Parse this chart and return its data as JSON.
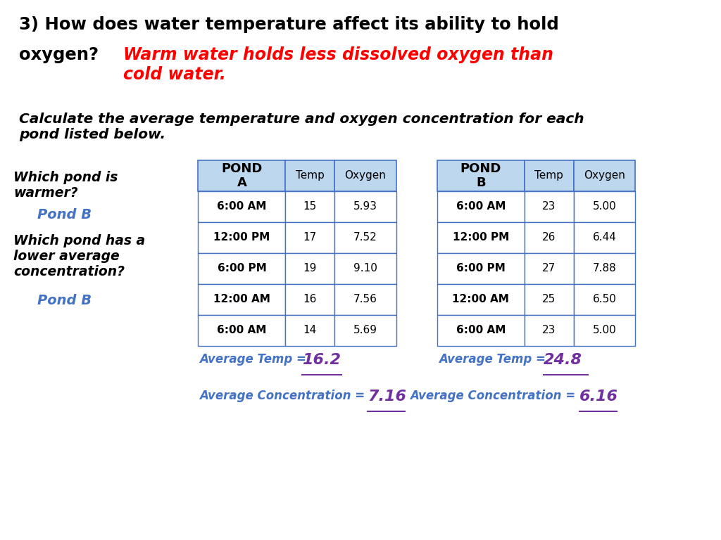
{
  "title_line1": "3) How does water temperature affect its ability to hold",
  "title_line2": "oxygen?",
  "answer_text": "Warm water holds less dissolved oxygen than\ncold water.",
  "calc_text": "Calculate the average temperature and oxygen concentration for each\npond listed below.",
  "q1_text": "Which pond is\nwarmer?",
  "q1_answer": "Pond B",
  "q2_text": "Which pond has a\nlower average\nconcentration?",
  "q2_answer": "Pond B",
  "pond_a_header": "POND\nA",
  "pond_b_header": "POND\nB",
  "col_headers": [
    "Temp",
    "Oxygen"
  ],
  "times": [
    "6:00 AM",
    "12:00 PM",
    "6:00 PM",
    "12:00 AM",
    "6:00 AM"
  ],
  "pond_a_temp": [
    15,
    17,
    19,
    16,
    14
  ],
  "pond_a_oxygen": [
    5.93,
    7.52,
    9.1,
    7.56,
    5.69
  ],
  "pond_b_temp": [
    23,
    26,
    27,
    25,
    23
  ],
  "pond_b_oxygen": [
    5.0,
    6.44,
    7.88,
    6.5,
    5.0
  ],
  "avg_temp_a": "16.2",
  "avg_temp_b": "24.8",
  "avg_conc_a": "7.16",
  "avg_conc_b": "6.16",
  "title_color": "#000000",
  "answer_color": "#FF0000",
  "calc_color": "#000000",
  "question_color": "#000000",
  "pond_answer_color": "#4472C4",
  "avg_label_color": "#4472C4",
  "avg_value_color": "#7030A0",
  "table_header_bg": "#BDD7EE",
  "table_border_color": "#4472C4",
  "bg_color": "#FFFFFF"
}
